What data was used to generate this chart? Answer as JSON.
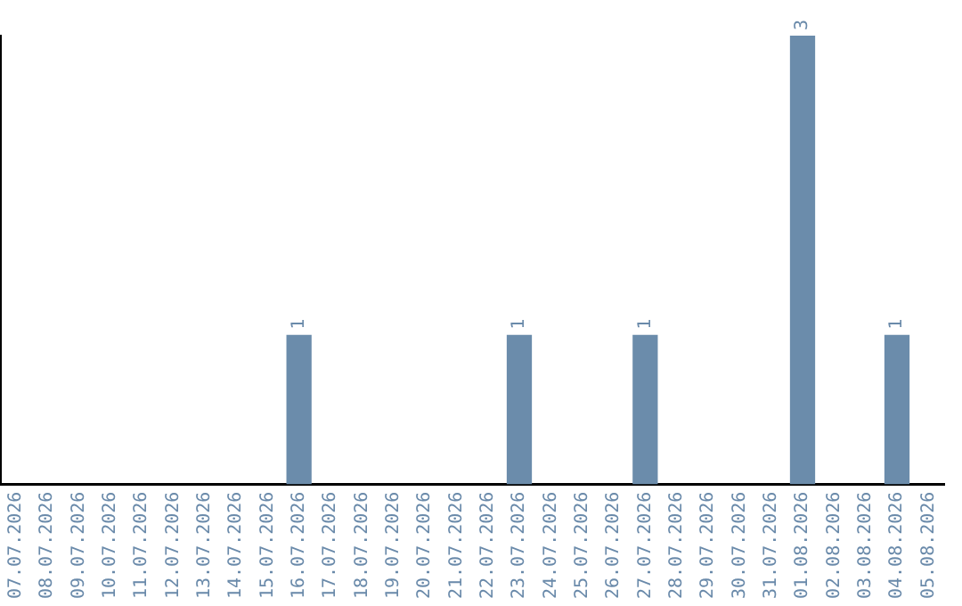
{
  "chart_data": {
    "type": "bar",
    "categories": [
      "07.07.2026",
      "08.07.2026",
      "09.07.2026",
      "10.07.2026",
      "11.07.2026",
      "12.07.2026",
      "13.07.2026",
      "14.07.2026",
      "15.07.2026",
      "16.07.2026",
      "17.07.2026",
      "18.07.2026",
      "19.07.2026",
      "20.07.2026",
      "21.07.2026",
      "22.07.2026",
      "23.07.2026",
      "24.07.2026",
      "25.07.2026",
      "26.07.2026",
      "27.07.2026",
      "28.07.2026",
      "29.07.2026",
      "30.07.2026",
      "31.07.2026",
      "01.08.2026",
      "02.08.2026",
      "03.08.2026",
      "04.08.2026",
      "05.08.2026"
    ],
    "values": [
      0,
      0,
      0,
      0,
      0,
      0,
      0,
      0,
      0,
      1,
      0,
      0,
      0,
      0,
      0,
      0,
      1,
      0,
      0,
      0,
      1,
      0,
      0,
      0,
      0,
      3,
      0,
      0,
      1,
      0
    ],
    "value_labels": [
      null,
      null,
      null,
      null,
      null,
      null,
      null,
      null,
      null,
      "1",
      null,
      null,
      null,
      null,
      null,
      null,
      "1",
      null,
      null,
      null,
      "1",
      null,
      null,
      null,
      null,
      "3",
      null,
      null,
      "1",
      null
    ],
    "color": "#6b8cab",
    "grid": false,
    "legend": false,
    "tick_labels": "x"
  }
}
